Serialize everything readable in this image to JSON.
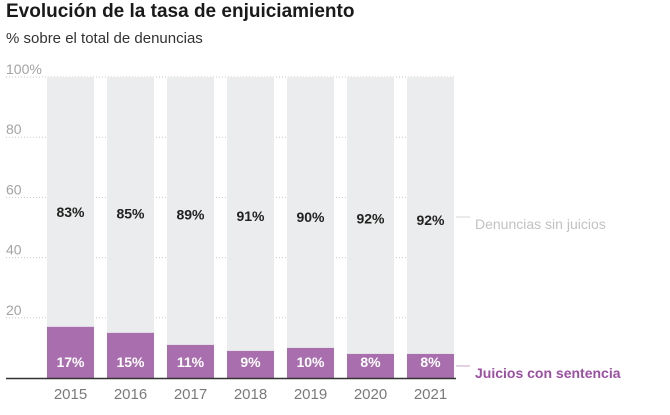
{
  "chart_data": {
    "type": "bar",
    "stacked": true,
    "title": "Evolución de la tasa de enjuiciamiento",
    "subtitle": "% sobre el total de denuncias",
    "categories": [
      "2015",
      "2016",
      "2017",
      "2018",
      "2019",
      "2020",
      "2021"
    ],
    "series": [
      {
        "name": "Juicios con sentencia",
        "values": [
          17,
          15,
          11,
          9,
          10,
          8,
          8
        ],
        "labels": [
          "17%",
          "15%",
          "11%",
          "9%",
          "10%",
          "8%",
          "8%"
        ],
        "color": "#a86ead"
      },
      {
        "name": "Denuncias sin juicios",
        "values": [
          83,
          85,
          89,
          91,
          90,
          92,
          92
        ],
        "labels": [
          "83%",
          "85%",
          "89%",
          "91%",
          "90%",
          "92%",
          "92%"
        ],
        "color": "#ebeced"
      }
    ],
    "y_ticks": [
      "100%",
      "80",
      "60",
      "40",
      "20"
    ],
    "y_tick_values": [
      100,
      80,
      60,
      40,
      20
    ],
    "ylim": [
      0,
      100
    ],
    "legend_placement": "right, beside series",
    "legend_colors": {
      "Juicios con sentencia": "#9c4fa3",
      "Denuncias sin juicios": "#c2c2c2"
    },
    "grid": true
  }
}
